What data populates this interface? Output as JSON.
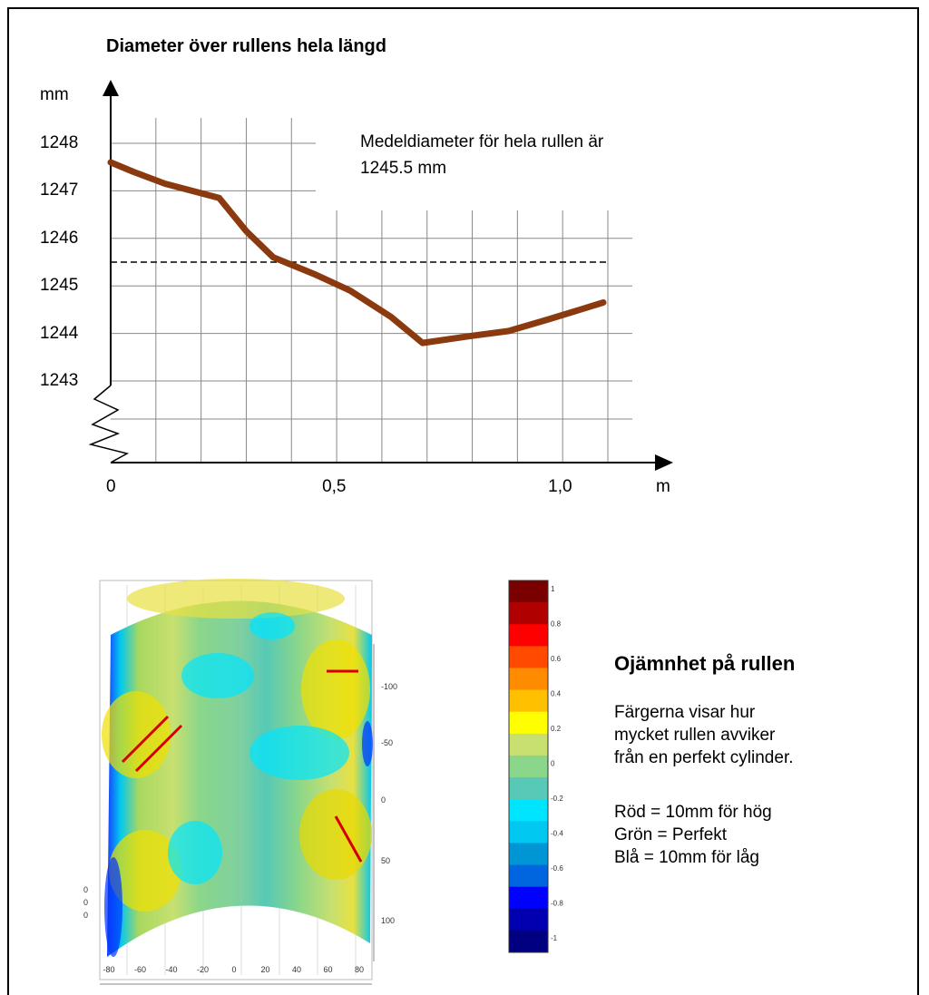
{
  "chart_data": [
    {
      "type": "line",
      "title": "Diameter över rullens hela längd",
      "ylabel": "mm",
      "xlabel": "m",
      "ylim": [
        1242,
        1248.5
      ],
      "xlim": [
        0,
        1.1
      ],
      "y_ticks": [
        "1248",
        "1247",
        "1246",
        "1245",
        "1244",
        "1243"
      ],
      "x_ticks": [
        {
          "value": 0,
          "label": "0"
        },
        {
          "value": 0.5,
          "label": "0,5"
        },
        {
          "value": 1.0,
          "label": "1,0"
        }
      ],
      "grid": true,
      "line_color": "#8b3a0f",
      "mean_line": 1245.5,
      "annotation": "Medeldiameter för hela rullen är 1245.5 mm",
      "series": [
        {
          "x": [
            0,
            0.05,
            0.12,
            0.24,
            0.3,
            0.36,
            0.45,
            0.53,
            0.62,
            0.69,
            0.8,
            0.88,
            0.97,
            1.09
          ],
          "values": [
            1247.6,
            1247.4,
            1247.15,
            1246.85,
            1246.15,
            1245.6,
            1245.25,
            1244.9,
            1244.35,
            1243.8,
            1243.95,
            1244.05,
            1244.3,
            1244.65
          ]
        }
      ]
    },
    {
      "type": "heatmap",
      "x_ticks": [
        "-80",
        "-60",
        "-40",
        "-20",
        "0",
        "20",
        "40",
        "60",
        "80"
      ],
      "y_ticks": [
        "-100",
        "-50",
        "0",
        "50",
        "100"
      ],
      "colorbar_ticks": [
        "1",
        "0.8",
        "0.6",
        "0.4",
        "0.2",
        "0",
        "-0.2",
        "-0.4",
        "-0.6",
        "-0.8",
        "-1"
      ],
      "colorbar_colors": [
        "#7a0000",
        "#b00000",
        "#ff0000",
        "#ff4a00",
        "#ff8c00",
        "#ffc000",
        "#ffff00",
        "#c8e070",
        "#8ad68a",
        "#57c9b6",
        "#00e5ff",
        "#00c8f0",
        "#0096d6",
        "#0066e0",
        "#0000ff",
        "#0000b0",
        "#000080"
      ]
    }
  ],
  "heat_title": "Ojämnhet på rullen",
  "heat_desc": [
    "Färgerna visar hur",
    "mycket rullen avviker",
    "från en perfekt cylinder."
  ],
  "legend_lines": [
    "Röd = 10mm för hög",
    "Grön = Perfekt",
    "Blå = 10mm för låg"
  ],
  "heat_left_ticks": [
    "0",
    "0",
    "0"
  ]
}
